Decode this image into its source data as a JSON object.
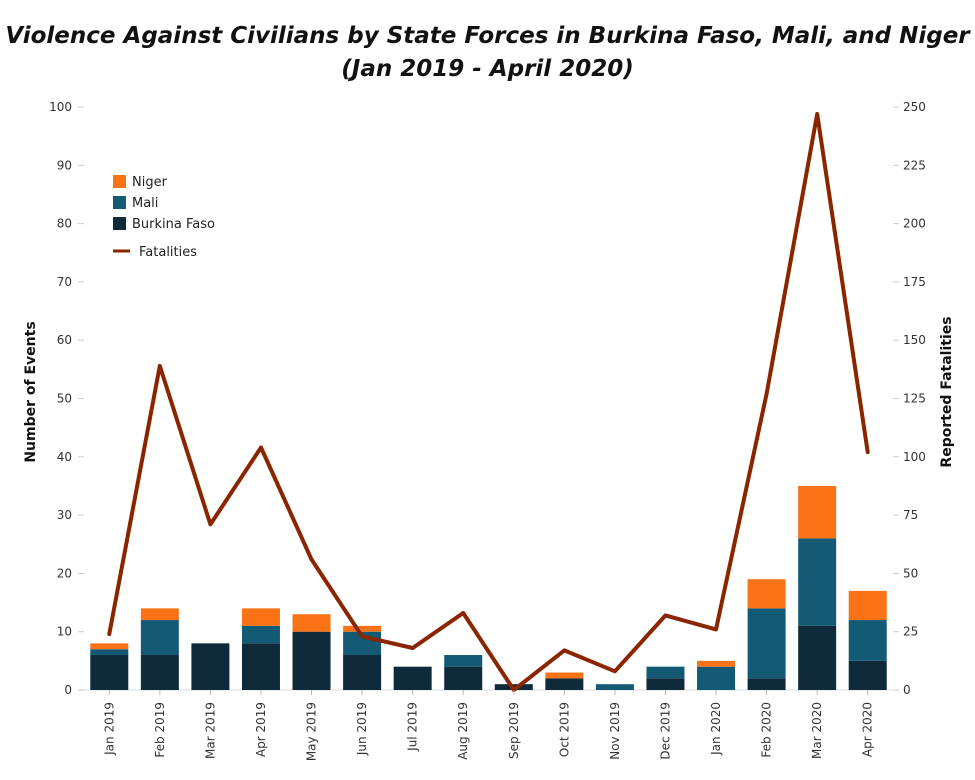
{
  "chart_data": {
    "type": "bar",
    "stacked": true,
    "title": "Violence Against Civilians by State Forces in Burkina Faso, Mali, and Niger",
    "subtitle": "(Jan 2019 - April 2020)",
    "xlabel": "",
    "ylabel": "Number of Events",
    "y2label": "Reported Fatalities",
    "ylim": [
      0,
      100
    ],
    "y2lim": [
      0,
      250
    ],
    "yticks": [
      "0",
      "10",
      "20",
      "30",
      "40",
      "50",
      "60",
      "70",
      "80",
      "90",
      "100"
    ],
    "y2ticks": [
      "0",
      "25",
      "50",
      "75",
      "100",
      "125",
      "150",
      "175",
      "200",
      "225",
      "250"
    ],
    "categories": [
      "Jan 2019",
      "Feb 2019",
      "Mar 2019",
      "Apr 2019",
      "May 2019",
      "Jun 2019",
      "Jul 2019",
      "Aug 2019",
      "Sep 2019",
      "Oct 2019",
      "Nov 2019",
      "Dec 2019",
      "Jan 2020",
      "Feb 2020",
      "Mar 2020",
      "Apr 2020"
    ],
    "series": [
      {
        "name": "Burkina Faso",
        "color": "#0f2a3a",
        "values": [
          6,
          6,
          8,
          8,
          10,
          6,
          4,
          4,
          1,
          2,
          0,
          2,
          0,
          2,
          11,
          5
        ]
      },
      {
        "name": "Mali",
        "color": "#155a74",
        "values": [
          1,
          6,
          0,
          3,
          0,
          4,
          0,
          2,
          0,
          0,
          1,
          2,
          4,
          12,
          15,
          7
        ]
      },
      {
        "name": "Niger",
        "color": "#f97316",
        "values": [
          1,
          2,
          0,
          3,
          3,
          1,
          0,
          0,
          0,
          1,
          0,
          0,
          1,
          5,
          9,
          5
        ]
      }
    ],
    "line": {
      "name": "Fatalities",
      "color": "#8b2500",
      "axis": "right",
      "values": [
        24,
        139,
        71,
        104,
        56,
        23,
        18,
        33,
        0,
        17,
        8,
        32,
        26,
        127,
        247,
        102
      ]
    },
    "legend": {
      "position": "top-left"
    },
    "grid": false
  }
}
